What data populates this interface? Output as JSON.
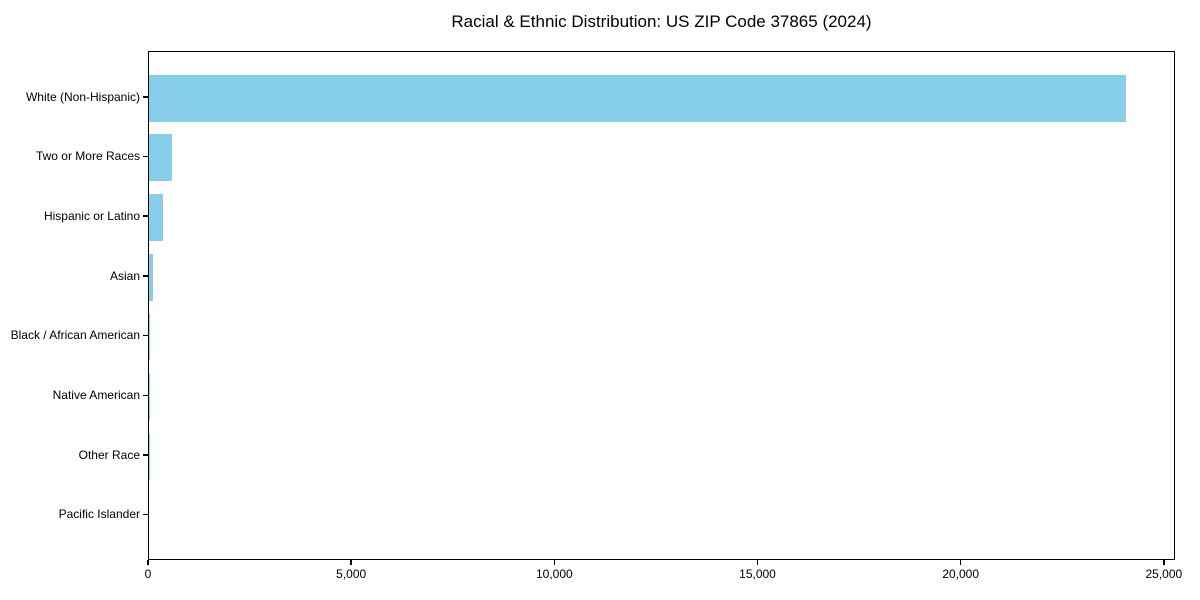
{
  "chart_data": {
    "type": "bar",
    "orientation": "horizontal",
    "title": "Racial & Ethnic Distribution: US ZIP Code 37865 (2024)",
    "categories": [
      "White (Non-Hispanic)",
      "Two or More Races",
      "Hispanic or Latino",
      "Asian",
      "Black / African American",
      "Native American",
      "Other Race",
      "Pacific Islander"
    ],
    "values": [
      24040,
      560,
      340,
      90,
      25,
      10,
      10,
      0
    ],
    "bar_color": "#87CEEB",
    "axis_color": "#000000",
    "text_color": "#000000",
    "xlabel": "",
    "ylabel": "",
    "xlim": [
      0,
      25200
    ],
    "xticks": [
      0,
      5000,
      10000,
      15000,
      20000,
      25000
    ],
    "xtick_labels": [
      "0",
      "5,000",
      "10,000",
      "15,000",
      "20,000",
      "25,000"
    ],
    "grid": false,
    "legend": "none"
  }
}
